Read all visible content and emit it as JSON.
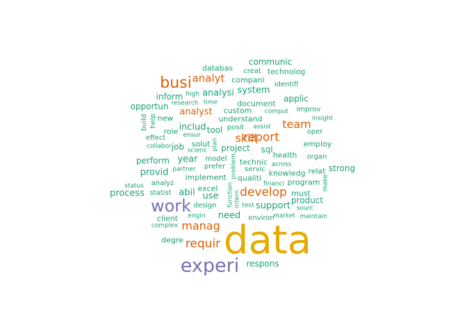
{
  "chart_data": {
    "type": "wordcloud",
    "colors": {
      "teal": "#1B9E77",
      "orange": "#D95F02",
      "purple": "#7570B3",
      "gold": "#E6AB02"
    },
    "words": [
      {
        "text": "data",
        "color": "gold",
        "rotated": false
      },
      {
        "text": "experi",
        "color": "purple",
        "rotated": false
      },
      {
        "text": "work",
        "color": "purple",
        "rotated": false
      },
      {
        "text": "busi",
        "color": "orange",
        "rotated": false
      },
      {
        "text": "develop",
        "color": "orange",
        "rotated": false
      },
      {
        "text": "requir",
        "color": "orange",
        "rotated": false
      },
      {
        "text": "manag",
        "color": "orange",
        "rotated": false
      },
      {
        "text": "report",
        "color": "orange",
        "rotated": false
      },
      {
        "text": "skill",
        "color": "orange",
        "rotated": false
      },
      {
        "text": "team",
        "color": "orange",
        "rotated": false
      },
      {
        "text": "analyt",
        "color": "orange",
        "rotated": false
      },
      {
        "text": "analyst",
        "color": "orange",
        "rotated": false
      },
      {
        "text": "communic",
        "color": "teal",
        "rotated": false
      },
      {
        "text": "databas",
        "color": "teal",
        "rotated": false
      },
      {
        "text": "creat",
        "color": "teal",
        "rotated": false
      },
      {
        "text": "technolog",
        "color": "teal",
        "rotated": false
      },
      {
        "text": "compani",
        "color": "teal",
        "rotated": false
      },
      {
        "text": "identifi",
        "color": "teal",
        "rotated": false
      },
      {
        "text": "analysi",
        "color": "teal",
        "rotated": false
      },
      {
        "text": "system",
        "color": "teal",
        "rotated": false
      },
      {
        "text": "inform",
        "color": "teal",
        "rotated": false
      },
      {
        "text": "high",
        "color": "teal",
        "rotated": false
      },
      {
        "text": "applic",
        "color": "teal",
        "rotated": false
      },
      {
        "text": "opportun",
        "color": "teal",
        "rotated": false
      },
      {
        "text": "research",
        "color": "teal",
        "rotated": false
      },
      {
        "text": "time",
        "color": "teal",
        "rotated": false
      },
      {
        "text": "document",
        "color": "teal",
        "rotated": false
      },
      {
        "text": "improv",
        "color": "teal",
        "rotated": false
      },
      {
        "text": "custom",
        "color": "teal",
        "rotated": false
      },
      {
        "text": "comput",
        "color": "teal",
        "rotated": false
      },
      {
        "text": "build",
        "color": "teal",
        "rotated": true
      },
      {
        "text": "help",
        "color": "teal",
        "rotated": true
      },
      {
        "text": "new",
        "color": "teal",
        "rotated": false
      },
      {
        "text": "understand",
        "color": "teal",
        "rotated": false
      },
      {
        "text": "insight",
        "color": "teal",
        "rotated": false
      },
      {
        "text": "includ",
        "color": "teal",
        "rotated": false
      },
      {
        "text": "tool",
        "color": "teal",
        "rotated": false
      },
      {
        "text": "posit",
        "color": "teal",
        "rotated": false
      },
      {
        "text": "assist",
        "color": "teal",
        "rotated": false
      },
      {
        "text": "role",
        "color": "teal",
        "rotated": false
      },
      {
        "text": "ensur",
        "color": "teal",
        "rotated": false
      },
      {
        "text": "oper",
        "color": "teal",
        "rotated": false
      },
      {
        "text": "effect",
        "color": "teal",
        "rotated": false
      },
      {
        "text": "solut",
        "color": "teal",
        "rotated": false
      },
      {
        "text": "plan",
        "color": "teal",
        "rotated": true
      },
      {
        "text": "employ",
        "color": "teal",
        "rotated": false
      },
      {
        "text": "collabor",
        "color": "teal",
        "rotated": false
      },
      {
        "text": "job",
        "color": "teal",
        "rotated": false
      },
      {
        "text": "project",
        "color": "teal",
        "rotated": false
      },
      {
        "text": "sql",
        "color": "teal",
        "rotated": false
      },
      {
        "text": "scienc",
        "color": "teal",
        "rotated": false
      },
      {
        "text": "health",
        "color": "teal",
        "rotated": false
      },
      {
        "text": "organ",
        "color": "teal",
        "rotated": false
      },
      {
        "text": "perform",
        "color": "teal",
        "rotated": false
      },
      {
        "text": "year",
        "color": "teal",
        "rotated": false
      },
      {
        "text": "model",
        "color": "teal",
        "rotated": false
      },
      {
        "text": "problem",
        "color": "teal",
        "rotated": true
      },
      {
        "text": "technic",
        "color": "teal",
        "rotated": false
      },
      {
        "text": "across",
        "color": "teal",
        "rotated": false
      },
      {
        "text": "strong",
        "color": "teal",
        "rotated": false
      },
      {
        "text": "provid",
        "color": "teal",
        "rotated": false
      },
      {
        "text": "partner",
        "color": "teal",
        "rotated": false
      },
      {
        "text": "prefer",
        "color": "teal",
        "rotated": false
      },
      {
        "text": "servic",
        "color": "teal",
        "rotated": false
      },
      {
        "text": "knowledg",
        "color": "teal",
        "rotated": false
      },
      {
        "text": "relat",
        "color": "teal",
        "rotated": false
      },
      {
        "text": "implement",
        "color": "teal",
        "rotated": false
      },
      {
        "text": "qualiti",
        "color": "teal",
        "rotated": false
      },
      {
        "text": "financi",
        "color": "teal",
        "rotated": false
      },
      {
        "text": "program",
        "color": "teal",
        "rotated": false
      },
      {
        "text": "make",
        "color": "teal",
        "rotated": true
      },
      {
        "text": "status",
        "color": "teal",
        "rotated": false
      },
      {
        "text": "analyz",
        "color": "teal",
        "rotated": false
      },
      {
        "text": "process",
        "color": "teal",
        "rotated": false
      },
      {
        "text": "statist",
        "color": "teal",
        "rotated": false
      },
      {
        "text": "abil",
        "color": "teal",
        "rotated": false
      },
      {
        "text": "excel",
        "color": "teal",
        "rotated": false
      },
      {
        "text": "use",
        "color": "teal",
        "rotated": false
      },
      {
        "text": "function",
        "color": "teal",
        "rotated": true
      },
      {
        "text": "intern",
        "color": "teal",
        "rotated": true
      },
      {
        "text": "must",
        "color": "teal",
        "rotated": false
      },
      {
        "text": "product",
        "color": "teal",
        "rotated": false
      },
      {
        "text": "design",
        "color": "teal",
        "rotated": false
      },
      {
        "text": "test",
        "color": "teal",
        "rotated": false
      },
      {
        "text": "support",
        "color": "teal",
        "rotated": false
      },
      {
        "text": "sourc",
        "color": "teal",
        "rotated": false
      },
      {
        "text": "engin",
        "color": "teal",
        "rotated": false
      },
      {
        "text": "need",
        "color": "teal",
        "rotated": false
      },
      {
        "text": "environ",
        "color": "teal",
        "rotated": false
      },
      {
        "text": "market",
        "color": "teal",
        "rotated": false
      },
      {
        "text": "maintain",
        "color": "teal",
        "rotated": false
      },
      {
        "text": "client",
        "color": "teal",
        "rotated": false
      },
      {
        "text": "complex",
        "color": "teal",
        "rotated": false
      },
      {
        "text": "degre",
        "color": "teal",
        "rotated": false
      },
      {
        "text": "respons",
        "color": "teal",
        "rotated": false
      }
    ]
  }
}
